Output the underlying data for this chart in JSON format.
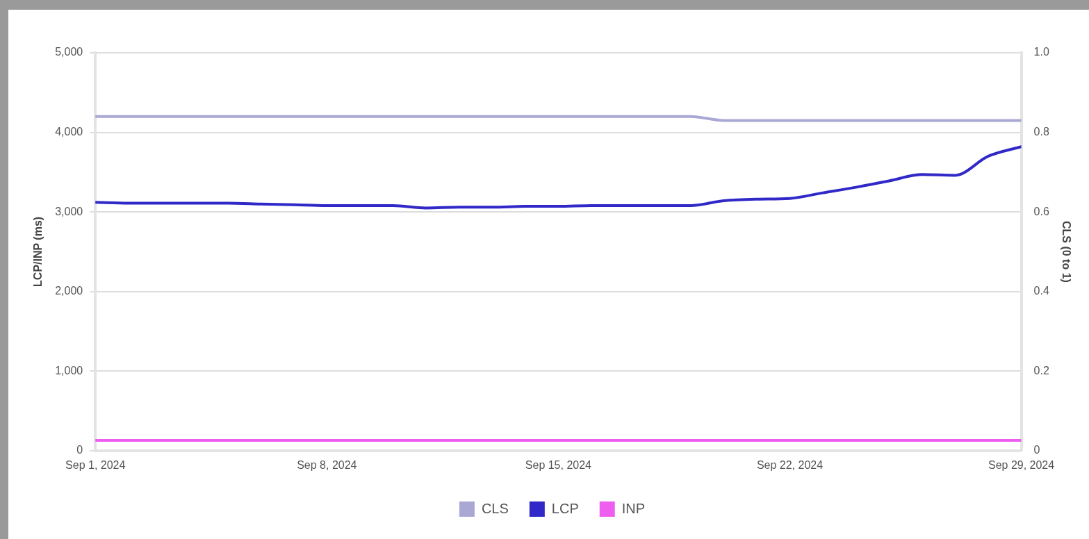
{
  "chart_data": {
    "type": "line",
    "x": [
      "2024-09-01",
      "2024-09-02",
      "2024-09-03",
      "2024-09-04",
      "2024-09-05",
      "2024-09-06",
      "2024-09-07",
      "2024-09-08",
      "2024-09-09",
      "2024-09-10",
      "2024-09-11",
      "2024-09-12",
      "2024-09-13",
      "2024-09-14",
      "2024-09-15",
      "2024-09-16",
      "2024-09-17",
      "2024-09-18",
      "2024-09-19",
      "2024-09-20",
      "2024-09-21",
      "2024-09-22",
      "2024-09-23",
      "2024-09-24",
      "2024-09-25",
      "2024-09-26",
      "2024-09-27",
      "2024-09-28",
      "2024-09-29"
    ],
    "series": [
      {
        "name": "CLS",
        "color": "#a9a8d4",
        "axis": "y2",
        "values": [
          0.84,
          0.84,
          0.84,
          0.84,
          0.84,
          0.84,
          0.84,
          0.84,
          0.84,
          0.84,
          0.84,
          0.84,
          0.84,
          0.84,
          0.84,
          0.84,
          0.84,
          0.84,
          0.84,
          0.83,
          0.83,
          0.83,
          0.83,
          0.83,
          0.83,
          0.83,
          0.83,
          0.83,
          0.83
        ]
      },
      {
        "name": "LCP",
        "color": "#3029c8",
        "values": [
          3120,
          3110,
          3110,
          3110,
          3110,
          3100,
          3090,
          3080,
          3080,
          3080,
          3050,
          3060,
          3060,
          3070,
          3070,
          3080,
          3080,
          3080,
          3080,
          3140,
          3160,
          3170,
          3240,
          3310,
          3390,
          3470,
          3460,
          3700,
          3820
        ]
      },
      {
        "name": "INP",
        "color": "#ee5ff0",
        "values": [
          130,
          130,
          130,
          130,
          130,
          130,
          130,
          130,
          130,
          130,
          130,
          130,
          130,
          130,
          130,
          130,
          130,
          130,
          130,
          130,
          130,
          130,
          130,
          130,
          130,
          130,
          130,
          130,
          130
        ]
      }
    ],
    "ylabel": "LCP/INP (ms)",
    "y2label": "CLS (0 to 1)",
    "xlim": [
      "2024-09-01",
      "2024-09-29"
    ],
    "xticks": [
      {
        "value": "2024-09-01",
        "label": "Sep 1, 2024"
      },
      {
        "value": "2024-09-08",
        "label": "Sep 8, 2024"
      },
      {
        "value": "2024-09-15",
        "label": "Sep 15, 2024"
      },
      {
        "value": "2024-09-22",
        "label": "Sep 22, 2024"
      },
      {
        "value": "2024-09-29",
        "label": "Sep 29, 2024"
      }
    ],
    "ylim": [
      0,
      5000
    ],
    "yticks": [
      0,
      {
        "value": 1000,
        "label": "1,000"
      },
      {
        "value": 2000,
        "label": "2,000"
      },
      {
        "value": 3000,
        "label": "3,000"
      },
      {
        "value": 4000,
        "label": "4,000"
      },
      {
        "value": 5000,
        "label": "5,000"
      }
    ],
    "y2lim": [
      0,
      1
    ],
    "y2ticks": [
      0,
      0.2,
      0.4,
      0.6,
      0.8,
      {
        "value": 1,
        "label": "1.0"
      }
    ],
    "grid": "y",
    "legend": "bottom",
    "marker": "none",
    "line_style": "solid"
  }
}
